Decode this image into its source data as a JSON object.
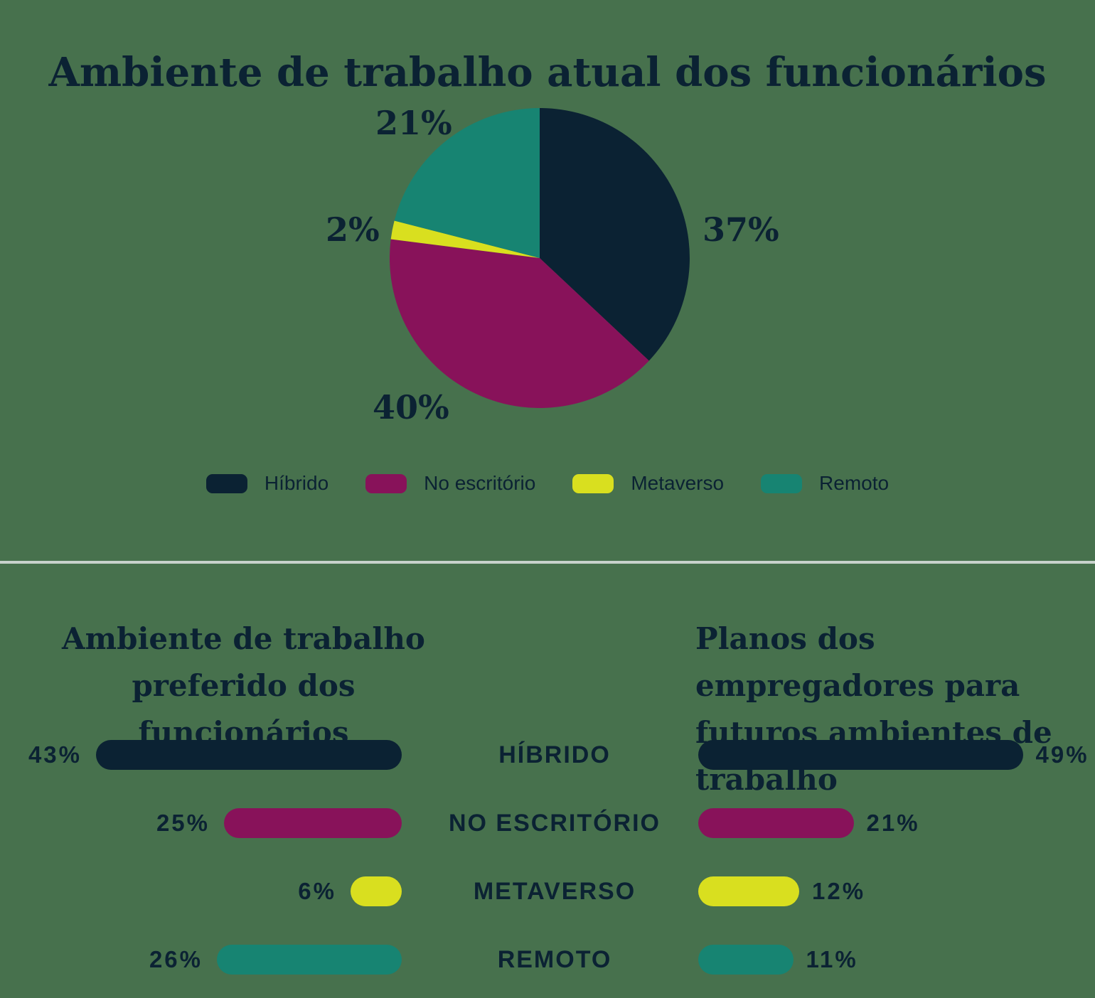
{
  "colors": {
    "ink": "#0B2233",
    "background": "#47714D",
    "divider": "#C8D2CC",
    "hibrido": "#0B2233",
    "no_escritorio": "#88125A",
    "metaverso": "#D9DF1F",
    "remoto": "#178472"
  },
  "chart_data": [
    {
      "type": "pie",
      "title": "Ambiente de trabalho atual dos funcionários",
      "categories": [
        "Híbrido",
        "No escritório",
        "Metaverso",
        "Remoto"
      ],
      "values": [
        37,
        40,
        2,
        21
      ],
      "labels": [
        "37%",
        "40%",
        "2%",
        "21%"
      ],
      "colors": [
        "#0B2233",
        "#88125A",
        "#D9DF1F",
        "#178472"
      ],
      "start_angle": "top",
      "direction": "clockwise",
      "legend_position": "bottom"
    },
    {
      "type": "bar",
      "orientation": "horizontal",
      "title": "Ambiente de trabalho preferido dos funcionários",
      "title_lines": [
        "Ambiente de trabalho",
        "preferido dos funcionários"
      ],
      "categories": [
        "HÍBRIDO",
        "NO ESCRITÓRIO",
        "METAVERSO",
        "REMOTO"
      ],
      "values": [
        43,
        25,
        6,
        26
      ],
      "labels": [
        "43%",
        "25%",
        "6%",
        "26%"
      ],
      "colors": [
        "#0B2233",
        "#88125A",
        "#D9DF1F",
        "#178472"
      ],
      "value_label_side": "left",
      "bars_aligned": "right"
    },
    {
      "type": "bar",
      "orientation": "horizontal",
      "title": "Planos dos empregadores para futuros ambientes de trabalho",
      "title_lines": [
        "Planos dos empregadores para",
        "futuros ambientes de trabalho"
      ],
      "categories": [
        "HÍBRIDO",
        "NO ESCRITÓRIO",
        "METAVERSO",
        "REMOTO"
      ],
      "values": [
        49,
        21,
        12,
        11
      ],
      "labels": [
        "49%",
        "21%",
        "12%",
        "11%"
      ],
      "colors": [
        "#0B2233",
        "#88125A",
        "#D9DF1F",
        "#178472"
      ],
      "value_label_side": "right",
      "bars_aligned": "left"
    }
  ]
}
